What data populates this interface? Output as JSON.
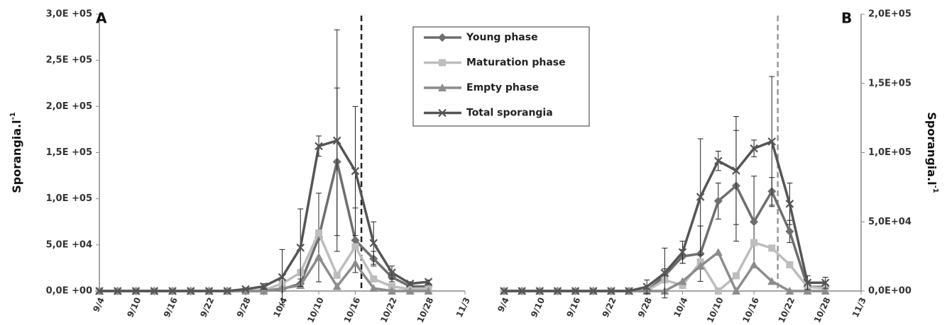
{
  "chart_data": [
    {
      "type": "line",
      "panel_label": "A",
      "y_label": "Sporangia.l",
      "y_label_sup": "-1",
      "y_axis_side": "left",
      "x": [
        "9/4",
        "9/7",
        "9/10",
        "9/13",
        "9/16",
        "9/19",
        "9/22",
        "9/25",
        "9/28",
        "10/1",
        "10/4",
        "10/7",
        "10/10",
        "10/13",
        "10/16",
        "10/19",
        "10/22",
        "10/25",
        "10/28"
      ],
      "xlim": [
        "9/4",
        "11/3"
      ],
      "xticks": [
        "9/4",
        "9/10",
        "9/16",
        "9/22",
        "9/28",
        "10/4",
        "10/10",
        "10/16",
        "10/22",
        "10/28",
        "11/3"
      ],
      "ylim": [
        0,
        300000
      ],
      "yticks": [
        {
          "value": 0,
          "label": "0,0E +00"
        },
        {
          "value": 50000,
          "label": "5,0E +04"
        },
        {
          "value": 100000,
          "label": "1,0E +05"
        },
        {
          "value": 150000,
          "label": "1,5E +05"
        },
        {
          "value": 200000,
          "label": "2,0E +05"
        },
        {
          "value": 250000,
          "label": "2,5E +05"
        },
        {
          "value": 300000,
          "label": "3,0E +05"
        }
      ],
      "reference_line": {
        "x": "10/17",
        "color": "#222222"
      },
      "legend": true,
      "legend_position": "top-right",
      "series": [
        {
          "name": "Young phase",
          "color": "#6e6e6e",
          "marker": "diamond",
          "values": [
            0,
            0,
            0,
            0,
            0,
            0,
            0,
            0,
            0,
            0,
            2000,
            8000,
            58000,
            140000,
            55000,
            35000,
            15000,
            5000,
            5000
          ],
          "errors": [
            null,
            null,
            null,
            null,
            null,
            null,
            null,
            null,
            null,
            null,
            2000,
            5000,
            48000,
            80000,
            35000,
            8000,
            5000,
            2000,
            2000
          ]
        },
        {
          "name": "Maturation phase",
          "color": "#bdbdbd",
          "marker": "square",
          "values": [
            0,
            0,
            0,
            0,
            0,
            0,
            0,
            0,
            0,
            1000,
            8000,
            20000,
            63000,
            17000,
            48000,
            13000,
            5000,
            2000,
            2000
          ]
        },
        {
          "name": "Empty phase",
          "color": "#8c8c8c",
          "marker": "triangle",
          "values": [
            0,
            0,
            0,
            0,
            0,
            0,
            0,
            0,
            0,
            0,
            3000,
            6000,
            37000,
            5000,
            30000,
            3000,
            0,
            0,
            0
          ]
        },
        {
          "name": "Total sporangia",
          "color": "#555555",
          "marker": "x",
          "values": [
            0,
            0,
            0,
            0,
            0,
            0,
            0,
            0,
            2000,
            5000,
            15000,
            47000,
            157000,
            163000,
            130000,
            52000,
            20000,
            8000,
            10000
          ],
          "errors": [
            null,
            null,
            null,
            null,
            null,
            null,
            null,
            null,
            1000,
            3000,
            30000,
            42000,
            11000,
            120000,
            70000,
            23000,
            7000,
            2000,
            2000
          ]
        }
      ]
    },
    {
      "type": "line",
      "panel_label": "B",
      "y_label": "Sporangia.l",
      "y_label_sup": "-1",
      "y_axis_side": "right",
      "x": [
        "9/4",
        "9/7",
        "9/10",
        "9/13",
        "9/16",
        "9/19",
        "9/22",
        "9/25",
        "9/28",
        "10/1",
        "10/4",
        "10/7",
        "10/10",
        "10/13",
        "10/16",
        "10/19",
        "10/22",
        "10/25",
        "10/28"
      ],
      "xlim": [
        "9/4",
        "11/3"
      ],
      "xticks": [
        "9/4",
        "9/10",
        "9/16",
        "9/22",
        "9/28",
        "10/4",
        "10/10",
        "10/16",
        "10/22",
        "10/28",
        "11/3"
      ],
      "ylim": [
        0,
        200000
      ],
      "yticks": [
        {
          "value": 0,
          "label": "0,0E+00"
        },
        {
          "value": 50000,
          "label": "5,0E+04"
        },
        {
          "value": 100000,
          "label": "1,0E+05"
        },
        {
          "value": 150000,
          "label": "1,5E+05"
        },
        {
          "value": 200000,
          "label": "2,0E+05"
        }
      ],
      "reference_line": {
        "x": "10/20",
        "color": "#999999"
      },
      "legend": false,
      "series": [
        {
          "name": "Young phase",
          "color": "#6e6e6e",
          "marker": "diamond",
          "values": [
            0,
            0,
            0,
            0,
            0,
            0,
            0,
            0,
            0,
            11000,
            25000,
            27000,
            65000,
            76000,
            50000,
            72000,
            43000,
            3000,
            3000
          ],
          "errors": [
            null,
            null,
            null,
            null,
            null,
            null,
            null,
            null,
            null,
            5000,
            5000,
            20000,
            13000,
            40000,
            33000,
            10000,
            8000,
            2000,
            2000
          ]
        },
        {
          "name": "Maturation phase",
          "color": "#bdbdbd",
          "marker": "square",
          "values": [
            0,
            0,
            0,
            0,
            0,
            0,
            0,
            0,
            0,
            8000,
            4000,
            21000,
            0,
            11000,
            35000,
            31000,
            19000,
            3000,
            2000
          ]
        },
        {
          "name": "Empty phase",
          "color": "#8c8c8c",
          "marker": "triangle",
          "values": [
            0,
            0,
            0,
            0,
            0,
            0,
            0,
            0,
            0,
            0,
            7000,
            18000,
            28000,
            0,
            19000,
            7000,
            0,
            0,
            0
          ]
        },
        {
          "name": "Total sporangia",
          "color": "#555555",
          "marker": "x",
          "values": [
            0,
            0,
            0,
            0,
            0,
            0,
            0,
            0,
            3000,
            13000,
            28000,
            68000,
            94000,
            87000,
            103000,
            108000,
            63000,
            6000,
            6000
          ],
          "errors": [
            null,
            null,
            null,
            null,
            null,
            null,
            null,
            null,
            5000,
            18000,
            8000,
            42000,
            7000,
            39000,
            6000,
            47000,
            15000,
            5000,
            4000
          ]
        }
      ]
    }
  ]
}
